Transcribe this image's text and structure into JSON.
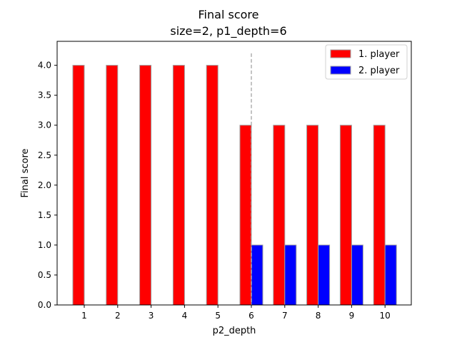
{
  "chart_data": {
    "type": "bar",
    "title": "Final score",
    "subtitle": "size=2, p1_depth=6",
    "xlabel": "p2_depth",
    "ylabel": "Final score",
    "categories": [
      "1",
      "2",
      "3",
      "4",
      "5",
      "6",
      "7",
      "8",
      "9",
      "10"
    ],
    "x_ticks": [
      "1",
      "2",
      "3",
      "4",
      "5",
      "6",
      "7",
      "8",
      "9",
      "10"
    ],
    "y_ticks": [
      "0.0",
      "0.5",
      "1.0",
      "1.5",
      "2.0",
      "2.5",
      "3.0",
      "3.5",
      "4.0"
    ],
    "ylim": [
      0,
      4.4
    ],
    "grid": false,
    "legend_position": "upper right",
    "reference_line": {
      "x": 6,
      "style": "dashed",
      "color": "#b0b0b0"
    },
    "series": [
      {
        "name": "1. player",
        "color": "#ff0000",
        "values": [
          4,
          4,
          4,
          4,
          4,
          3,
          3,
          3,
          3,
          3
        ]
      },
      {
        "name": "2. player",
        "color": "#0000ff",
        "values": [
          0,
          0,
          0,
          0,
          0,
          1,
          1,
          1,
          1,
          1
        ]
      }
    ]
  }
}
